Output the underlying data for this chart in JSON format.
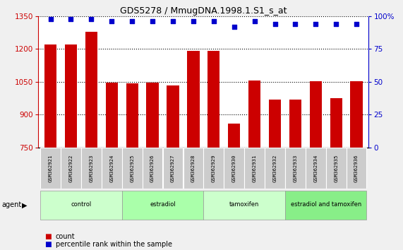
{
  "title": "GDS5278 / MmugDNA.1998.1.S1_s_at",
  "samples": [
    "GSM362921",
    "GSM362922",
    "GSM362923",
    "GSM362924",
    "GSM362925",
    "GSM362926",
    "GSM362927",
    "GSM362928",
    "GSM362929",
    "GSM362930",
    "GSM362931",
    "GSM362932",
    "GSM362933",
    "GSM362934",
    "GSM362935",
    "GSM362936"
  ],
  "counts": [
    1220,
    1220,
    1280,
    1047,
    1043,
    1045,
    1035,
    1193,
    1193,
    858,
    1057,
    970,
    970,
    1052,
    975,
    1052
  ],
  "percentile": [
    98,
    98,
    98,
    96,
    96,
    96,
    96,
    96,
    96,
    92,
    96,
    94,
    94,
    94,
    94,
    94
  ],
  "bar_color": "#cc0000",
  "dot_color": "#0000cc",
  "ylim_left": [
    750,
    1350
  ],
  "ylim_right": [
    0,
    100
  ],
  "yticks_left": [
    750,
    900,
    1050,
    1200,
    1350
  ],
  "yticks_right": [
    0,
    25,
    50,
    75,
    100
  ],
  "group_labels": [
    "control",
    "estradiol",
    "tamoxifen",
    "estradiol and tamoxifen"
  ],
  "group_ranges": [
    [
      0,
      3
    ],
    [
      4,
      7
    ],
    [
      8,
      11
    ],
    [
      12,
      15
    ]
  ],
  "group_colors": [
    "#ccffcc",
    "#aaffaa",
    "#ccffcc",
    "#88ee88"
  ],
  "agent_label": "agent",
  "legend_count_label": "count",
  "legend_percentile_label": "percentile rank within the sample",
  "fig_bg": "#f0f0f0"
}
